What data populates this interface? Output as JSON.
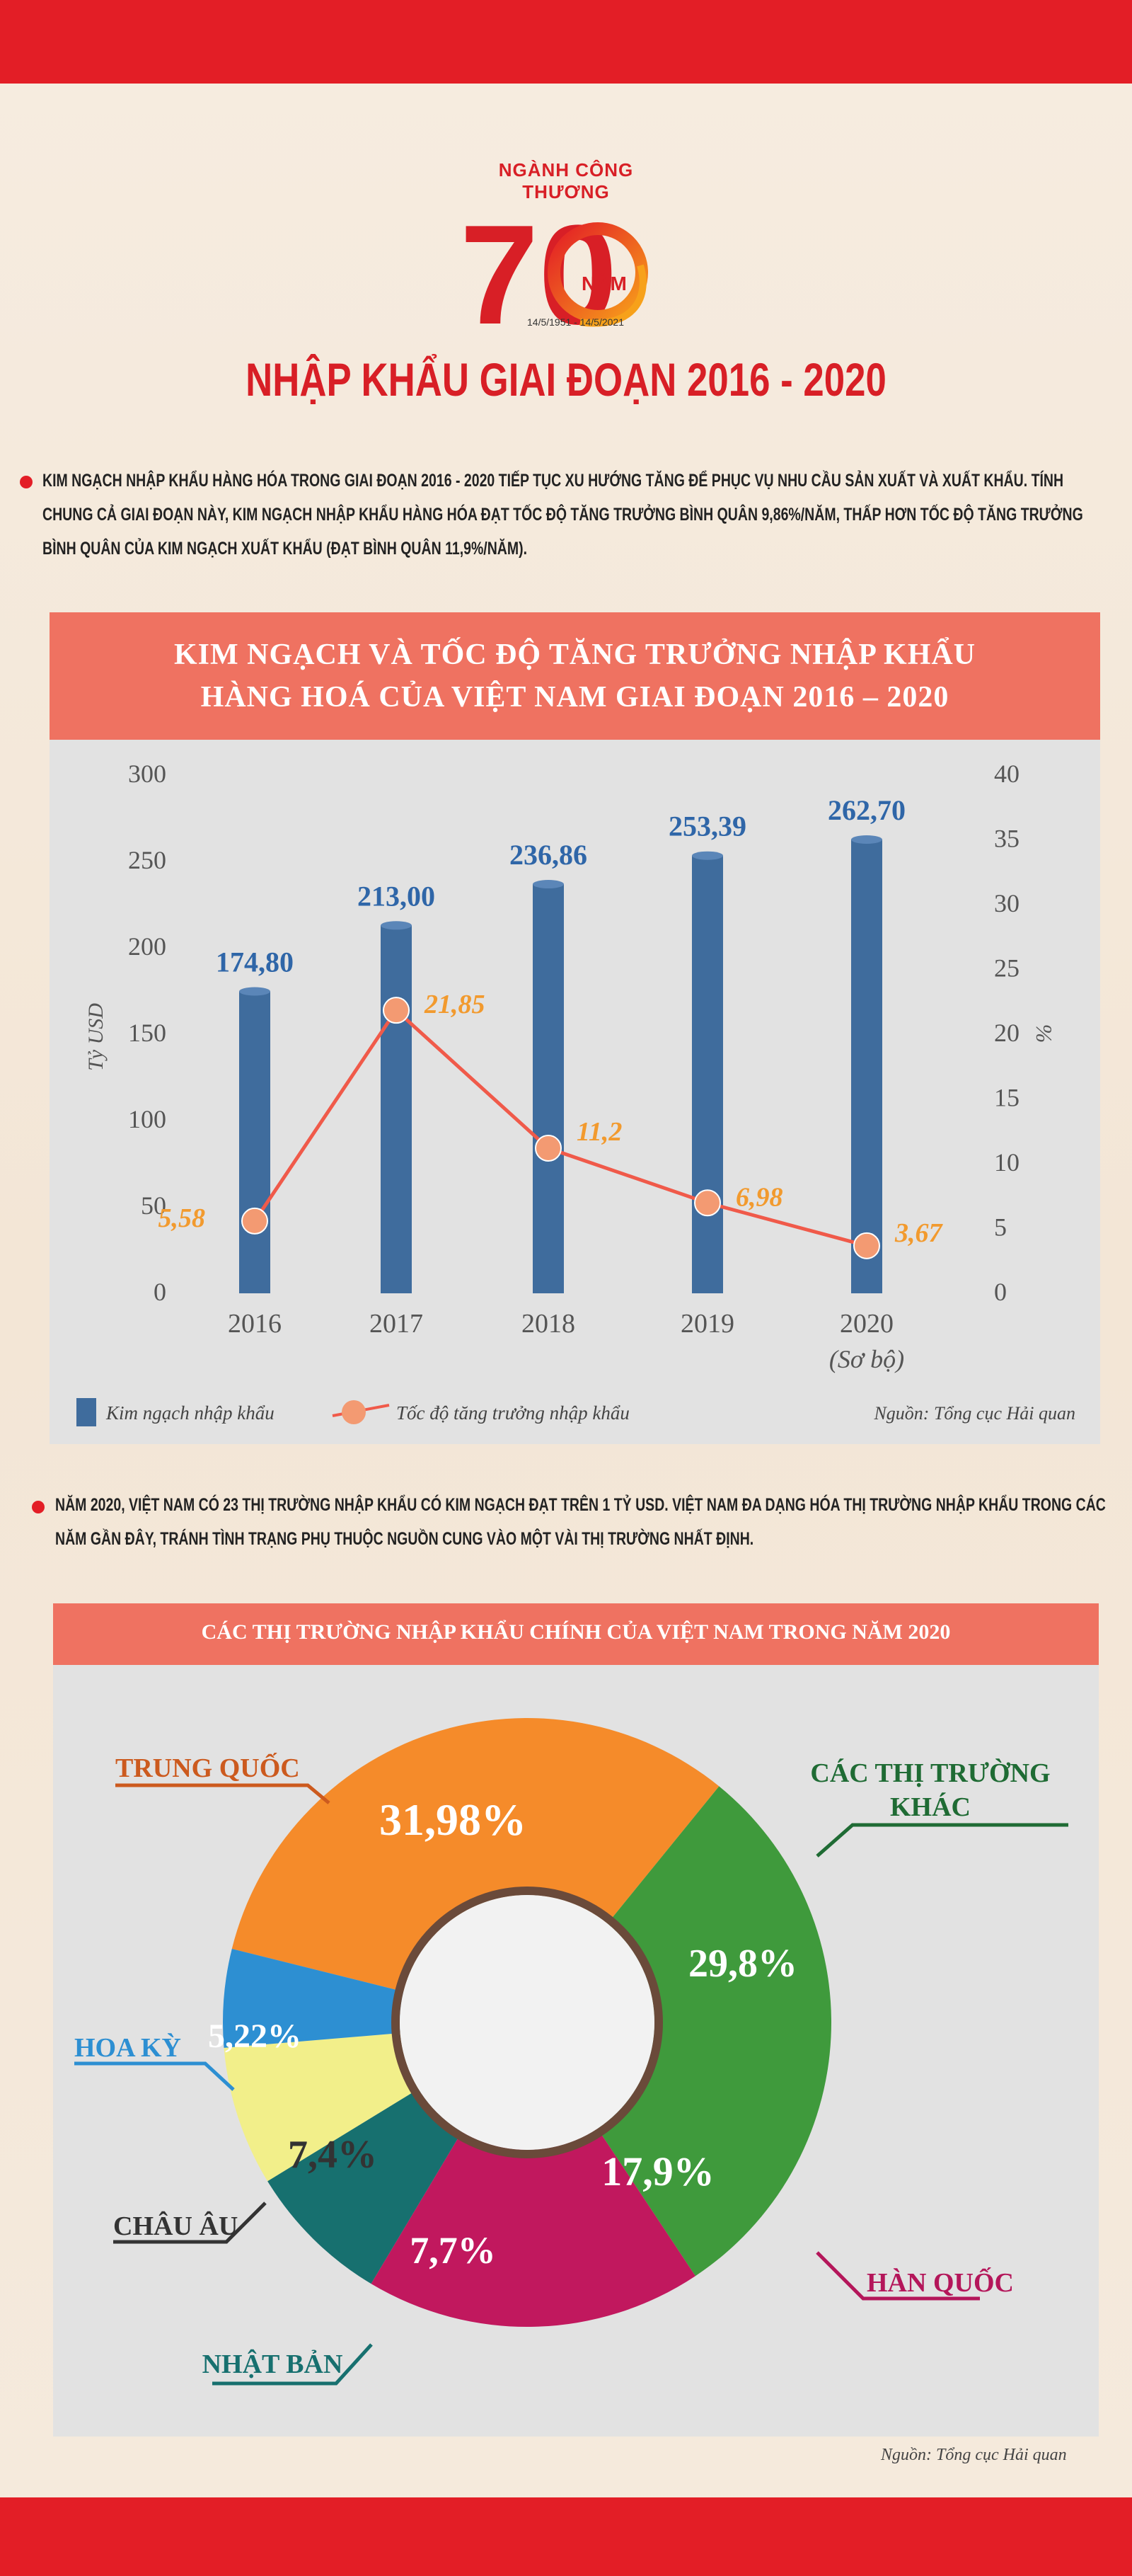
{
  "logo": {
    "top_text": "NGÀNH CÔNG THƯƠNG",
    "number": "70",
    "nam": "NĂM",
    "dates": "14/5/1951 - 14/5/2021"
  },
  "title": "NHẬP KHẨU GIAI ĐOẠN 2016 - 2020",
  "paragraph1": "KIM NGẠCH NHẬP KHẨU HÀNG HÓA TRONG GIAI ĐOẠN 2016 - 2020 TIẾP TỤC XU HƯỚNG TĂNG ĐỂ PHỤC VỤ NHU CẦU SẢN XUẤT VÀ XUẤT KHẨU. TÍNH CHUNG CẢ GIAI ĐOẠN NÀY, KIM NGẠCH NHẬP KHẨU HÀNG HÓA ĐẠT TỐC ĐỘ TĂNG TRƯỞNG BÌNH QUÂN 9,86%/NĂM, THẤP HƠN TỐC ĐỘ TĂNG TRƯỞNG BÌNH QUÂN CỦA KIM NGẠCH XUẤT KHẨU (ĐẠT BÌNH QUÂN 11,9%/NĂM).",
  "paragraph2": "NĂM 2020, VIỆT NAM CÓ 23 THỊ TRƯỜNG NHẬP KHẨU CÓ KIM NGẠCH ĐẠT TRÊN 1 TỶ USD. VIỆT NAM ĐA DẠNG HÓA THỊ TRƯỜNG NHẬP KHẨU TRONG CÁC NĂM GẦN ĐÂY, TRÁNH TÌNH TRẠNG PHỤ THUỘC NGUỒN CUNG VÀO MỘT VÀI THỊ TRƯỜNG NHẤT ĐỊNH.",
  "colors": {
    "red": "#e31e26",
    "bar": "#3f6c9d",
    "line": "#f05a4a",
    "orange_label": "#f29a2e",
    "header": "#ef7261"
  },
  "chart_data": [
    {
      "type": "bar",
      "title_line1": "KIM NGẠCH VÀ TỐC ĐỘ TĂNG TRƯỞNG NHẬP KHẨU",
      "title_line2": "HÀNG HOÁ CỦA VIỆT NAM GIAI ĐOẠN 2016 – 2020",
      "categories": [
        "2016",
        "2017",
        "2018",
        "2019",
        "2020"
      ],
      "category_note": "(Sơ bộ)",
      "ylabel": "Tỷ USD",
      "y2label": "%",
      "ylim": [
        0,
        300
      ],
      "y2lim": [
        0,
        40
      ],
      "yticks": [
        "300",
        "250",
        "200",
        "150",
        "100",
        "50",
        "0"
      ],
      "y2ticks": [
        "40",
        "35",
        "30",
        "25",
        "20",
        "15",
        "10",
        "5",
        "0"
      ],
      "series": [
        {
          "name": "Kim ngạch nhập khẩu",
          "type": "bar",
          "values": [
            174.8,
            213.0,
            236.86,
            253.39,
            262.7
          ],
          "labels": [
            "174,80",
            "213,00",
            "236,86",
            "253,39",
            "262,70"
          ]
        },
        {
          "name": "Tốc độ tăng trưởng nhập khẩu",
          "type": "line",
          "axis": "right",
          "values": [
            5.58,
            21.85,
            11.2,
            6.98,
            3.67
          ],
          "labels": [
            "5,58",
            "21,85",
            "11,2",
            "6,98",
            "3,67"
          ]
        }
      ],
      "source": "Nguồn: Tổng cục Hải quan"
    },
    {
      "type": "pie",
      "title": "CÁC THỊ TRƯỜNG NHẬP KHẨU CHÍNH CỦA VIỆT NAM TRONG NĂM 2020",
      "slices": [
        {
          "name": "TRUNG QUỐC",
          "value": 31.98,
          "label": "31,98%",
          "color": "#f58b2a"
        },
        {
          "name": "CÁC THỊ TRƯỜNG KHÁC",
          "value": 29.8,
          "label": "29,8%",
          "color": "#3f9a3c"
        },
        {
          "name": "HÀN QUỐC",
          "value": 17.9,
          "label": "17,9%",
          "color": "#c1185e"
        },
        {
          "name": "NHẬT BẢN",
          "value": 7.7,
          "label": "7,7%",
          "color": "#17706f"
        },
        {
          "name": "CHÂU ÂU",
          "value": 7.4,
          "label": "7,4%",
          "color": "#f2ef8a"
        },
        {
          "name": "HOA KỲ",
          "value": 5.22,
          "label": "5,22%",
          "color": "#2d8fd2"
        }
      ],
      "other_line1": "CÁC THỊ TRƯỜNG",
      "other_line2": "KHÁC",
      "source": "Nguồn: Tổng cục Hải quan"
    }
  ]
}
